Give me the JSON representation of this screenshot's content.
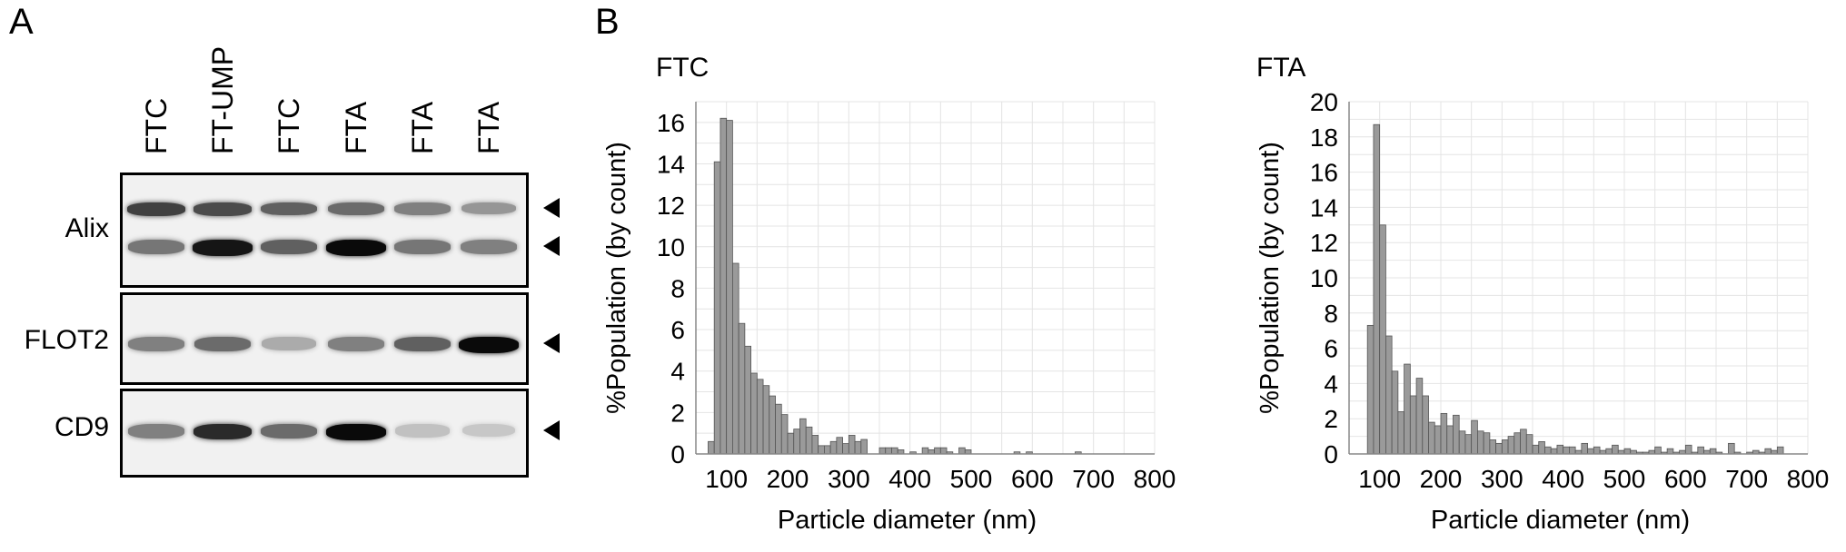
{
  "panels": {
    "a_letter": "A",
    "b_letter": "B"
  },
  "western_blot": {
    "lanes": [
      "FTC",
      "FT-UMP",
      "FTC",
      "FTA",
      "FTA",
      "FTA"
    ],
    "rows": [
      {
        "label": "Alix",
        "bands": [
          [
            0.75,
            0.7,
            0.6,
            0.55,
            0.45,
            0.35
          ],
          [
            0.5,
            0.95,
            0.6,
            1.0,
            0.5,
            0.45
          ]
        ]
      },
      {
        "label": "FLOT2",
        "bands": [
          [
            0.45,
            0.55,
            0.25,
            0.45,
            0.6,
            1.0
          ]
        ]
      },
      {
        "label": "CD9",
        "bands": [
          [
            0.45,
            0.85,
            0.55,
            1.0,
            0.15,
            0.12
          ]
        ]
      }
    ]
  },
  "chart_data": [
    {
      "type": "bar",
      "title": "FTC",
      "xlabel": "Particle diameter (nm)",
      "ylabel": "%Population (by count)",
      "xlim": [
        50,
        800
      ],
      "ylim": [
        0,
        17
      ],
      "xticks": [
        100,
        200,
        300,
        400,
        500,
        600,
        700,
        800
      ],
      "yticks": [
        0,
        2,
        4,
        6,
        8,
        10,
        12,
        14,
        16
      ],
      "bin_width": 10,
      "x": [
        75,
        85,
        95,
        105,
        115,
        125,
        135,
        145,
        155,
        165,
        175,
        185,
        195,
        205,
        215,
        225,
        235,
        245,
        255,
        265,
        275,
        285,
        295,
        305,
        315,
        325,
        355,
        365,
        375,
        385,
        405,
        425,
        435,
        445,
        455,
        465,
        485,
        495,
        575,
        595,
        675
      ],
      "values": [
        0.6,
        14.1,
        16.2,
        16.1,
        9.2,
        6.3,
        5.2,
        3.9,
        3.6,
        3.3,
        2.8,
        2.4,
        1.9,
        1.0,
        1.2,
        1.7,
        1.3,
        0.9,
        0.4,
        0.4,
        0.6,
        0.8,
        0.5,
        0.9,
        0.6,
        0.7,
        0.3,
        0.3,
        0.3,
        0.2,
        0.1,
        0.3,
        0.2,
        0.3,
        0.3,
        0.1,
        0.3,
        0.2,
        0.1,
        0.1,
        0.1
      ]
    },
    {
      "type": "bar",
      "title": "FTA",
      "xlabel": "Particle diameter (nm)",
      "ylabel": "%Population (by count)",
      "xlim": [
        50,
        800
      ],
      "ylim": [
        0,
        20
      ],
      "xticks": [
        100,
        200,
        300,
        400,
        500,
        600,
        700,
        800
      ],
      "yticks": [
        0,
        2,
        4,
        6,
        8,
        10,
        12,
        14,
        16,
        18,
        20
      ],
      "bin_width": 10,
      "x": [
        85,
        95,
        105,
        115,
        125,
        135,
        145,
        155,
        165,
        175,
        185,
        195,
        205,
        215,
        225,
        235,
        245,
        255,
        265,
        275,
        285,
        295,
        305,
        315,
        325,
        335,
        345,
        355,
        365,
        375,
        385,
        395,
        405,
        415,
        425,
        435,
        445,
        455,
        465,
        475,
        485,
        495,
        505,
        515,
        525,
        535,
        545,
        555,
        565,
        575,
        585,
        595,
        605,
        615,
        625,
        635,
        645,
        655,
        675,
        685,
        705,
        715,
        725,
        735,
        745,
        755
      ],
      "values": [
        7.3,
        18.7,
        13.0,
        6.7,
        4.7,
        2.4,
        5.1,
        3.3,
        4.3,
        3.3,
        1.8,
        1.6,
        2.3,
        1.6,
        2.2,
        1.3,
        1.1,
        1.9,
        1.3,
        1.2,
        0.8,
        0.6,
        0.8,
        1.0,
        1.2,
        1.4,
        1.1,
        0.5,
        0.7,
        0.4,
        0.3,
        0.5,
        0.4,
        0.4,
        0.2,
        0.6,
        0.3,
        0.4,
        0.2,
        0.3,
        0.5,
        0.2,
        0.3,
        0.2,
        0.1,
        0.1,
        0.2,
        0.4,
        0.1,
        0.3,
        0.1,
        0.2,
        0.5,
        0.1,
        0.4,
        0.2,
        0.3,
        0.1,
        0.6,
        0.1,
        0.1,
        0.2,
        0.1,
        0.3,
        0.2,
        0.4
      ]
    }
  ]
}
